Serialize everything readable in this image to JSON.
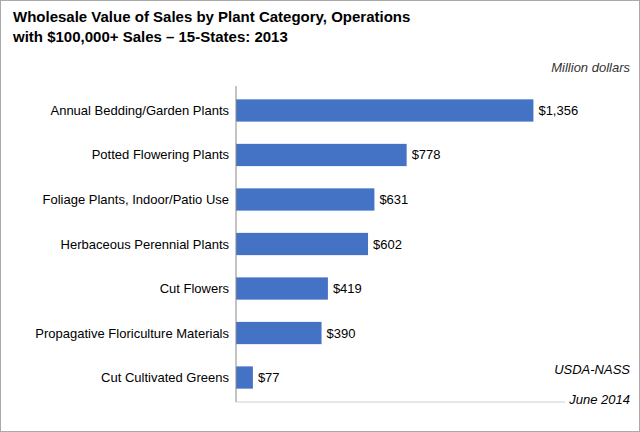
{
  "chart_data": {
    "type": "bar",
    "orientation": "horizontal",
    "title": "Wholesale Value of Sales by Plant Category, Operations",
    "subtitle": "with $100,000+ Sales – 15-States: 2013",
    "annotations": [
      "Million dollars",
      "USDA-NASS",
      "June 2014"
    ],
    "categories": [
      "Cut Cultivated Greens",
      "Propagative Floriculture Materials",
      "Cut Flowers",
      "Herbaceous Perennial Plants",
      "Foliage Plants, Indoor/Patio Use",
      "Potted Flowering Plants",
      "Annual Bedding/Garden Plants"
    ],
    "values": [
      77,
      390,
      419,
      602,
      631,
      778,
      1356
    ],
    "value_labels": [
      "$77",
      "$390",
      "$419",
      "$602",
      "$631",
      "$778",
      "$1,356"
    ],
    "data_labels": true,
    "color": "#4472C4",
    "xlim": [
      0,
      1500
    ],
    "tick_labels": "y",
    "grid": false
  }
}
